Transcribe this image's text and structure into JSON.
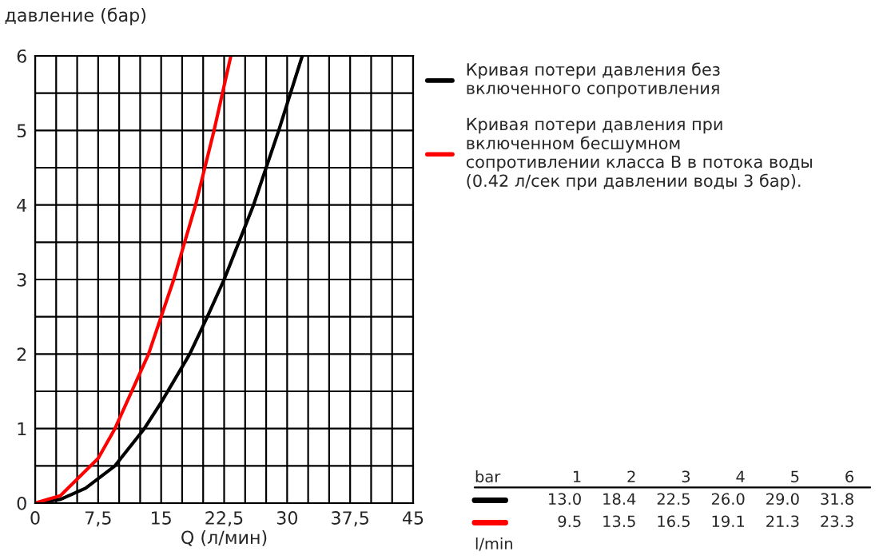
{
  "chart_data": {
    "type": "line",
    "ylabel": "давление (бар)",
    "xlabel": "Q (л/мин)",
    "series": [
      {
        "name": "Кривая потери давления без\nвключенного сопротивления",
        "color": "#000000",
        "x": [
          0,
          3,
          6,
          9.5,
          13,
          15,
          18.4,
          20.5,
          22.5,
          26,
          29,
          31.8
        ],
        "values": [
          0,
          0.05,
          0.2,
          0.5,
          1,
          1.35,
          2,
          2.5,
          3,
          4,
          5,
          6
        ]
      },
      {
        "name": "Кривая потери давления при\nвключенном бесшумном\nсопротивлении класса B в потока воды\n(0.42 л/сек при давлении воды 3 бар).",
        "color": "#ff0000",
        "x": [
          0,
          3,
          7.5,
          9.5,
          13.5,
          15,
          16.5,
          19.1,
          21.3,
          23.3
        ],
        "values": [
          0,
          0.1,
          0.6,
          1,
          2,
          2.5,
          3,
          4,
          5,
          6
        ]
      }
    ],
    "xlim": [
      0,
      45
    ],
    "ylim": [
      0,
      6
    ],
    "xticks": [
      0,
      {
        "value": 2.5,
        "label": null
      },
      {
        "value": 5,
        "label": null
      },
      {
        "value": 7.5,
        "label": "7,5"
      },
      {
        "value": 10,
        "label": null
      },
      {
        "value": 12.5,
        "label": null
      },
      15,
      {
        "value": 17.5,
        "label": null
      },
      {
        "value": 20,
        "label": null
      },
      {
        "value": 22.5,
        "label": "22,5"
      },
      {
        "value": 25,
        "label": null
      },
      {
        "value": 27.5,
        "label": null
      },
      30,
      {
        "value": 32.5,
        "label": null
      },
      {
        "value": 35,
        "label": null
      },
      {
        "value": 37.5,
        "label": "37,5"
      },
      {
        "value": 40,
        "label": null
      },
      {
        "value": 42.5,
        "label": null
      },
      45
    ],
    "yticks": [
      0,
      {
        "value": 0.5,
        "label": null
      },
      1,
      {
        "value": 1.5,
        "label": null
      },
      2,
      {
        "value": 2.5,
        "label": null
      },
      3,
      {
        "value": 3.5,
        "label": null
      },
      4,
      {
        "value": 4.5,
        "label": null
      },
      5,
      {
        "value": 5.5,
        "label": null
      },
      6
    ],
    "grid": true,
    "legend": "right",
    "annotations": [
      "bar",
      "1",
      "2",
      "3",
      "4",
      "5",
      "6",
      "13.0",
      "18.4",
      "22.5",
      "26.0",
      "29.0",
      "31.8",
      "9.5",
      "13.5",
      "16.5",
      "19.1",
      "21.3",
      "23.3",
      "l/min"
    ]
  }
}
